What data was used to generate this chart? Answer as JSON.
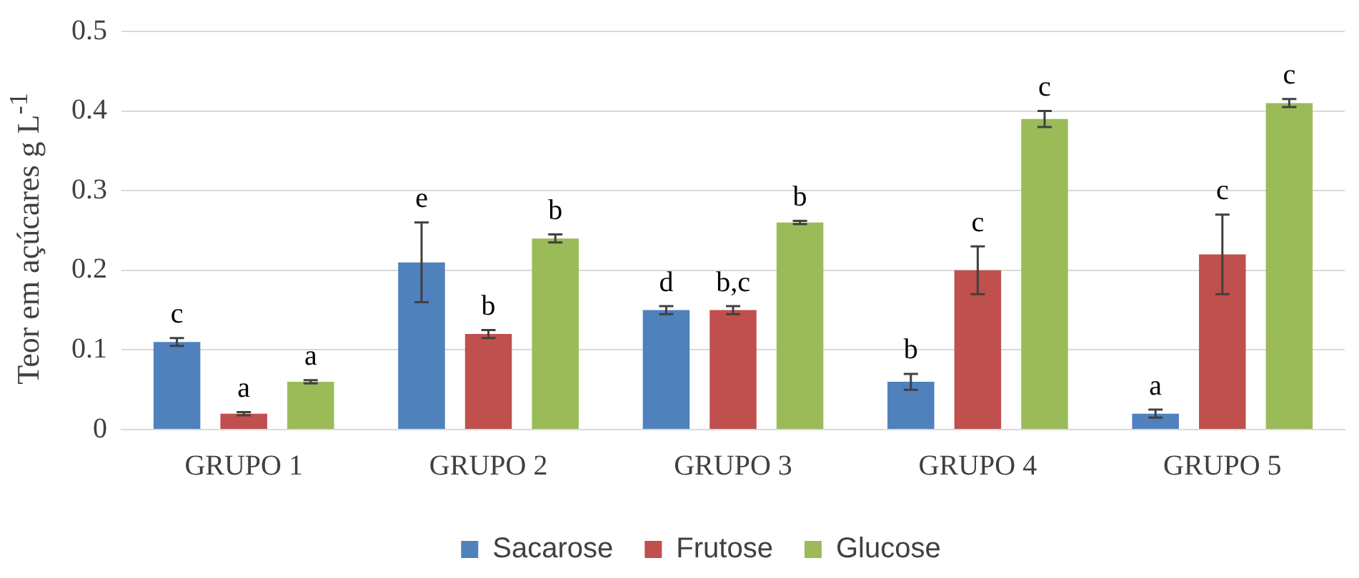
{
  "chart_data": {
    "type": "bar",
    "ylabel": "Teor em açúcares g L$^{-1}$",
    "categories": [
      "GRUPO 1",
      "GRUPO 2",
      "GRUPO 3",
      "GRUPO 4",
      "GRUPO 5"
    ],
    "series": [
      {
        "name": "Sacarose",
        "color": "#4f81bd",
        "values": [
          0.11,
          0.21,
          0.15,
          0.06,
          0.02
        ],
        "errors": [
          0.005,
          0.05,
          0.005,
          0.01,
          0.005
        ],
        "value_labels": [
          "c",
          "e",
          "d",
          "b",
          "a"
        ]
      },
      {
        "name": "Frutose",
        "color": "#c0504d",
        "values": [
          0.02,
          0.12,
          0.15,
          0.2,
          0.22
        ],
        "errors": [
          0.002,
          0.005,
          0.005,
          0.03,
          0.05
        ],
        "value_labels": [
          "a",
          "b",
          "b,c",
          "c",
          "c"
        ]
      },
      {
        "name": "Glucose",
        "color": "#9bbb59",
        "values": [
          0.06,
          0.24,
          0.26,
          0.39,
          0.41
        ],
        "errors": [
          0.002,
          0.005,
          0.002,
          0.01,
          0.005
        ],
        "value_labels": [
          "a",
          "b",
          "b",
          "c",
          "c"
        ]
      }
    ],
    "ylim": [
      0,
      0.5
    ],
    "yticks": [
      0,
      0.1,
      0.2,
      0.3,
      0.4,
      0.5
    ],
    "grid": "y",
    "legend": "bottom"
  }
}
